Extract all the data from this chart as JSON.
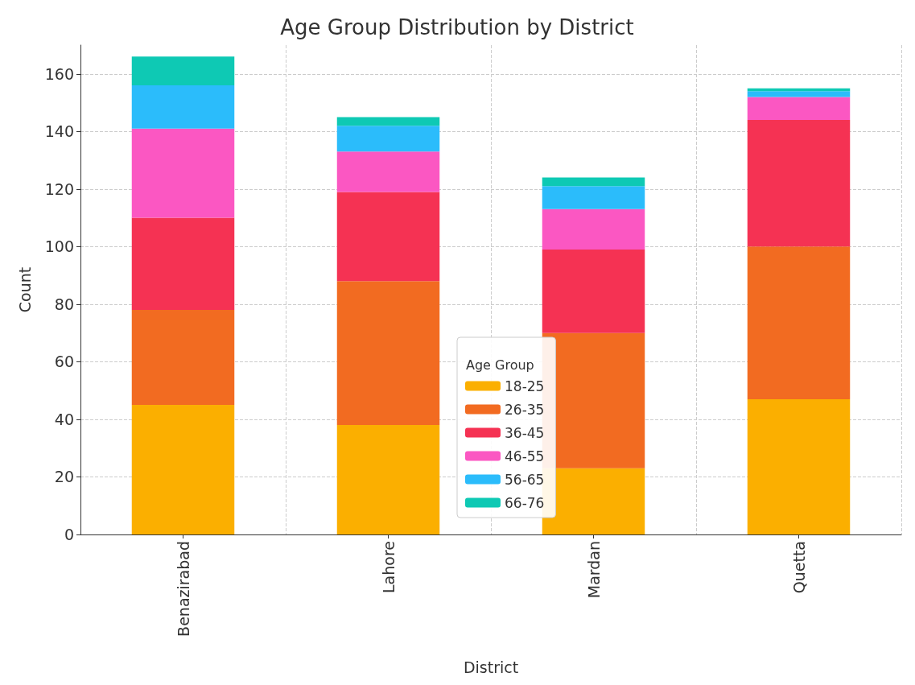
{
  "chart_data": {
    "type": "bar",
    "stacked": true,
    "title": "Age Group Distribution by District",
    "xlabel": "District",
    "ylabel": "Count",
    "legend_title": "Age Group",
    "legend": "bottom",
    "grid": true,
    "categories": [
      "Benazirabad",
      "Lahore",
      "Mardan",
      "Quetta"
    ],
    "ylim": [
      0,
      170
    ],
    "yticks": [
      0,
      20,
      40,
      60,
      80,
      100,
      120,
      140,
      160
    ],
    "series": [
      {
        "name": "18-25",
        "color": "#fbaf00",
        "values": [
          45,
          38,
          23,
          47
        ]
      },
      {
        "name": "26-35",
        "color": "#f26b21",
        "values": [
          33,
          50,
          47,
          53
        ]
      },
      {
        "name": "36-45",
        "color": "#f53253",
        "values": [
          32,
          31,
          29,
          44
        ]
      },
      {
        "name": "46-55",
        "color": "#fb57c2",
        "values": [
          31,
          14,
          14,
          8
        ]
      },
      {
        "name": "56-65",
        "color": "#2bbcfb",
        "values": [
          15,
          9,
          8,
          2
        ]
      },
      {
        "name": "66-76",
        "color": "#0ec9b4",
        "values": [
          10,
          3,
          3,
          1
        ]
      }
    ]
  }
}
